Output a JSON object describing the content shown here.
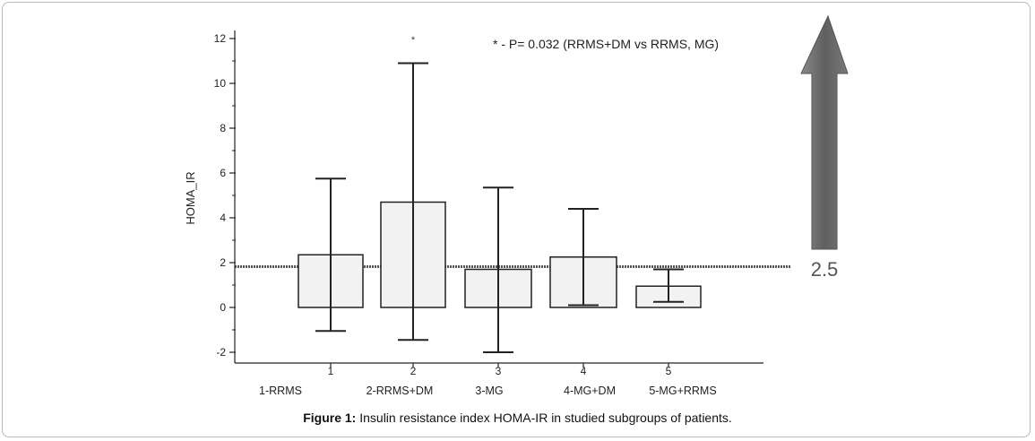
{
  "caption": {
    "label": "Figure 1:",
    "text": " Insulin resistance index HOMA-IR in studied subgroups of patients."
  },
  "chart_data": {
    "type": "bar",
    "ylabel": "HOMA_IR",
    "ylim": [
      -2,
      12
    ],
    "yticks": [
      -2,
      0,
      2,
      4,
      6,
      8,
      10,
      12
    ],
    "categories": [
      "1",
      "2",
      "3",
      "4",
      "5"
    ],
    "group_labels": [
      "1-RRMS",
      "2-RRMS+DM",
      "3-MG",
      "4-MG+DM",
      "5-MG+RRMS"
    ],
    "values": [
      2.35,
      4.7,
      1.7,
      2.25,
      0.95
    ],
    "error_high": [
      5.75,
      10.9,
      5.35,
      4.4,
      1.7
    ],
    "error_low": [
      -1.05,
      -1.45,
      -2.0,
      0.1,
      0.25
    ],
    "significance_marker": "*",
    "significance_marker_category": "2",
    "annotation": "* - P= 0.032 (RRMS+DM vs RRMS, MG)",
    "reference_line": 2.5,
    "reference_label": "2.5",
    "bar_fill": "#f2f2f2",
    "line_color": "#222222",
    "arrow_color": "#6e6e6e"
  }
}
